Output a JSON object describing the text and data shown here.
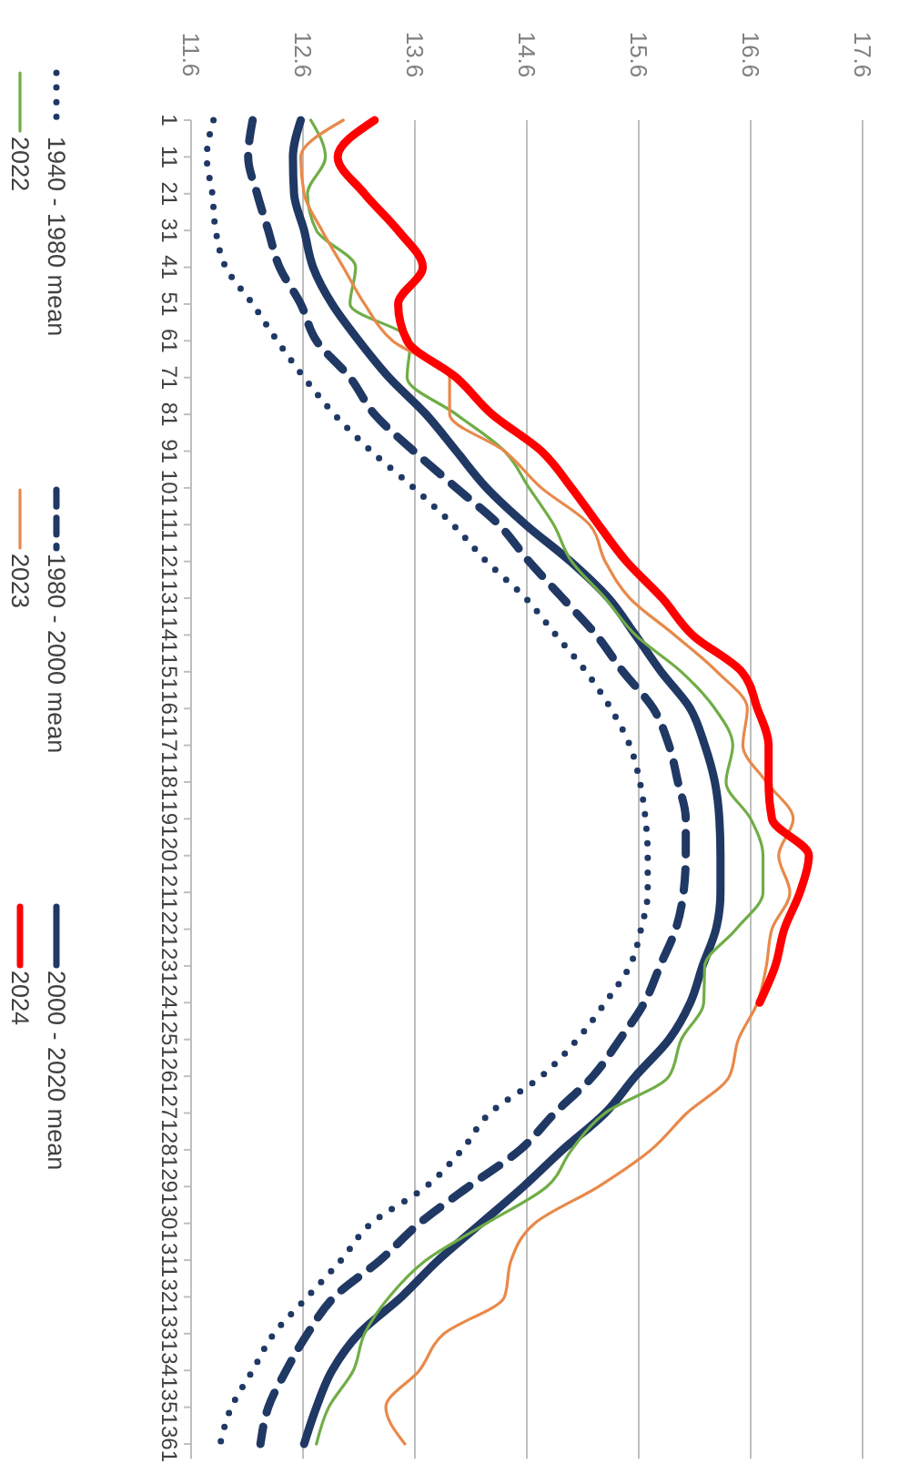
{
  "chart_data": {
    "type": "line",
    "ylim": [
      365,
      1
    ],
    "yticks": [
      1,
      11,
      21,
      31,
      41,
      51,
      61,
      71,
      81,
      91,
      101,
      111,
      121,
      131,
      141,
      151,
      161,
      171,
      181,
      191,
      201,
      211,
      221,
      231,
      241,
      251,
      261,
      271,
      281,
      291,
      301,
      311,
      321,
      331,
      341,
      351,
      361
    ],
    "xlim": [
      11.6,
      17.6
    ],
    "xticks": [
      11.6,
      12.6,
      13.6,
      14.6,
      15.6,
      16.6,
      17.6
    ],
    "grid": "x",
    "legend": "left",
    "series": [
      {
        "name": "1940 - 1980 mean",
        "color": "#203864",
        "line_style": "dotted",
        "values": [
          1,
          11,
          21,
          31,
          41,
          51,
          61,
          71,
          81,
          91,
          101,
          111,
          121,
          131,
          141,
          151,
          161,
          171,
          181,
          191,
          201,
          211,
          221,
          231,
          241,
          251,
          261,
          271,
          281,
          291,
          301,
          311,
          321,
          331,
          341,
          351,
          361
        ],
        "x": [
          11.8,
          11.74,
          11.79,
          11.82,
          11.91,
          12.15,
          12.37,
          12.61,
          12.88,
          13.21,
          13.59,
          13.94,
          14.24,
          14.59,
          14.86,
          15.13,
          15.35,
          15.52,
          15.61,
          15.66,
          15.68,
          15.68,
          15.62,
          15.52,
          15.3,
          15.05,
          14.73,
          14.27,
          14.02,
          13.7,
          13.21,
          12.94,
          12.64,
          12.34,
          12.15,
          11.96,
          11.86
        ]
      },
      {
        "name": "1980 - 2000 mean",
        "color": "#203864",
        "line_style": "dashed",
        "values": [
          1,
          11,
          21,
          31,
          41,
          51,
          61,
          71,
          81,
          91,
          101,
          111,
          121,
          131,
          141,
          151,
          161,
          171,
          181,
          191,
          201,
          211,
          221,
          231,
          241,
          251,
          261,
          271,
          281,
          291,
          301,
          311,
          321,
          331,
          341,
          351,
          361
        ],
        "x": [
          12.15,
          12.11,
          12.19,
          12.29,
          12.39,
          12.58,
          12.72,
          13.02,
          13.24,
          13.59,
          13.97,
          14.35,
          14.62,
          14.92,
          15.22,
          15.46,
          15.73,
          15.87,
          15.95,
          16.02,
          16.02,
          16.0,
          15.93,
          15.79,
          15.65,
          15.43,
          15.19,
          14.85,
          14.54,
          14.08,
          13.64,
          13.29,
          12.88,
          12.64,
          12.45,
          12.29,
          12.22
        ]
      },
      {
        "name": "2000 - 2020 mean",
        "color": "#203864",
        "line_style": "solid",
        "values": [
          1,
          11,
          21,
          31,
          41,
          51,
          61,
          71,
          81,
          91,
          101,
          111,
          121,
          131,
          141,
          151,
          161,
          171,
          181,
          191,
          201,
          211,
          221,
          231,
          241,
          251,
          261,
          271,
          281,
          291,
          301,
          311,
          321,
          331,
          341,
          351,
          361
        ],
        "x": [
          12.58,
          12.51,
          12.52,
          12.61,
          12.69,
          12.86,
          13.1,
          13.37,
          13.7,
          13.97,
          14.24,
          14.59,
          14.99,
          15.33,
          15.57,
          15.8,
          16.06,
          16.19,
          16.28,
          16.32,
          16.33,
          16.33,
          16.29,
          16.17,
          16.06,
          15.87,
          15.57,
          15.3,
          14.92,
          14.57,
          14.19,
          13.81,
          13.48,
          13.1,
          12.86,
          12.72,
          12.61
        ]
      },
      {
        "name": "2022",
        "color": "#70ad47",
        "line_style": "solid",
        "values": [
          1,
          11,
          21,
          31,
          41,
          51,
          61,
          71,
          81,
          91,
          101,
          111,
          121,
          131,
          141,
          151,
          161,
          171,
          181,
          191,
          201,
          211,
          221,
          231,
          241,
          251,
          261,
          271,
          281,
          291,
          301,
          311,
          321,
          331,
          341,
          351,
          361
        ],
        "x": [
          12.67,
          12.8,
          12.64,
          12.72,
          13.07,
          13.02,
          13.56,
          13.53,
          13.97,
          14.4,
          14.62,
          14.84,
          15.0,
          15.3,
          15.57,
          15.98,
          16.28,
          16.44,
          16.38,
          16.6,
          16.71,
          16.71,
          16.47,
          16.19,
          16.18,
          15.98,
          15.87,
          15.3,
          15.0,
          14.78,
          14.24,
          13.7,
          13.37,
          13.15,
          13.05,
          12.83,
          12.72
        ]
      },
      {
        "name": "2023",
        "color": "#e8894a",
        "line_style": "solid",
        "values": [
          1,
          11,
          21,
          31,
          41,
          51,
          61,
          71,
          81,
          91,
          101,
          111,
          121,
          131,
          141,
          151,
          161,
          171,
          181,
          191,
          201,
          211,
          221,
          231,
          241,
          251,
          261,
          271,
          281,
          291,
          301,
          311,
          321,
          331,
          341,
          351,
          361
        ],
        "x": [
          12.96,
          12.58,
          12.61,
          12.77,
          12.96,
          13.15,
          13.4,
          13.91,
          13.91,
          14.4,
          14.73,
          15.16,
          15.3,
          15.52,
          15.92,
          16.3,
          16.57,
          16.53,
          16.74,
          16.98,
          16.85,
          16.95,
          16.79,
          16.74,
          16.66,
          16.49,
          16.41,
          16.03,
          15.71,
          15.24,
          14.67,
          14.46,
          14.4,
          13.86,
          13.64,
          13.34,
          13.51
        ]
      },
      {
        "name": "2024",
        "color": "#ff0000",
        "line_style": "solid",
        "values": [
          1,
          11,
          21,
          31,
          41,
          51,
          61,
          71,
          81,
          91,
          101,
          111,
          121,
          131,
          141,
          151,
          161,
          171,
          181,
          191,
          201,
          211,
          221,
          231,
          241
        ],
        "x": [
          13.24,
          12.91,
          13.15,
          13.45,
          13.67,
          13.45,
          13.53,
          13.97,
          14.29,
          14.73,
          15.0,
          15.24,
          15.49,
          15.81,
          16.08,
          16.52,
          16.66,
          16.76,
          16.76,
          16.79,
          17.12,
          17.04,
          16.9,
          16.82,
          16.68
        ]
      }
    ]
  }
}
